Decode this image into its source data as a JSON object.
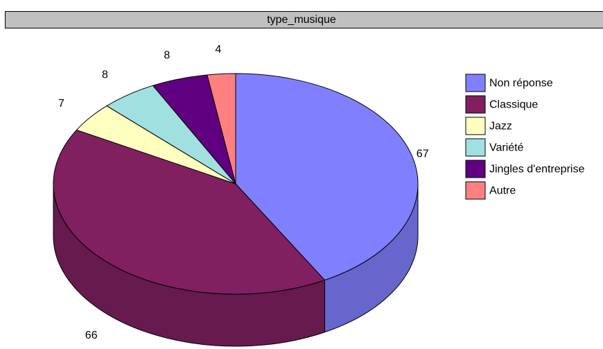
{
  "chart_data": {
    "type": "pie",
    "title": "type_musique",
    "style": "3d",
    "legend_position": "right",
    "categories": [
      "Non réponse",
      "Classique",
      "Jazz",
      "Variété",
      "Jingles d'entreprise",
      "Autre"
    ],
    "values": [
      67,
      66,
      7,
      8,
      8,
      4
    ],
    "value_labels": [
      "67",
      "66",
      "7",
      "8",
      "8",
      "4"
    ],
    "colors": [
      "#8080ff",
      "#802060",
      "#ffffc0",
      "#a0e0e0",
      "#600080",
      "#ff8080"
    ]
  }
}
